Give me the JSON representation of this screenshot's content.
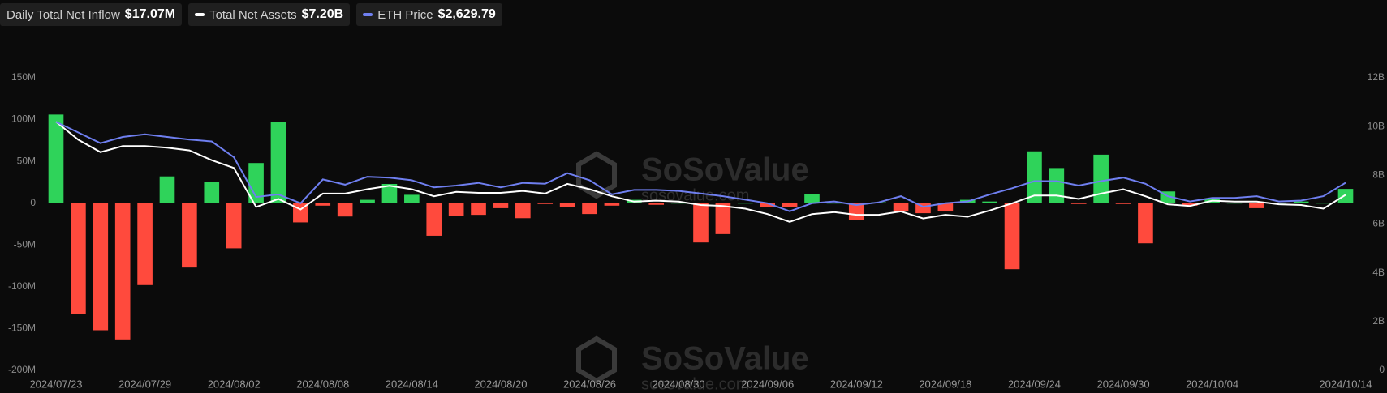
{
  "chart_data": {
    "type": "bar-line",
    "categories": [
      "2024/07/23",
      null,
      null,
      null,
      "2024/07/29",
      null,
      null,
      null,
      "2024/08/02",
      null,
      null,
      null,
      "2024/08/08",
      null,
      null,
      null,
      "2024/08/14",
      null,
      null,
      null,
      "2024/08/20",
      null,
      null,
      null,
      "2024/08/26",
      null,
      null,
      null,
      "2024/08/30",
      null,
      null,
      null,
      "2024/09/06",
      null,
      null,
      null,
      "2024/09/12",
      null,
      null,
      null,
      "2024/09/18",
      null,
      null,
      null,
      "2024/09/24",
      null,
      null,
      null,
      "2024/09/30",
      null,
      null,
      null,
      "2024/10/04",
      null,
      null,
      null,
      null,
      null,
      "2024/10/14"
    ],
    "series": [
      {
        "name": "Daily Total Net Inflow",
        "legend_label": "$17.07M",
        "kind": "bar",
        "axis": "y",
        "positive_color": "#2fd35a",
        "negative_color": "#ff4a3d",
        "values": [
          106,
          -133,
          -152,
          -163,
          -98,
          32,
          -77,
          25,
          -54,
          48,
          97,
          -23,
          -3,
          -16,
          4,
          23,
          10,
          -39,
          -15,
          -14,
          -6,
          -18,
          -1,
          -5,
          -13,
          -3,
          4,
          -2,
          0,
          -47,
          -37,
          0,
          -5,
          -5,
          11,
          0,
          -20,
          1,
          -10,
          -12,
          -10,
          4,
          2,
          -79,
          62,
          42,
          -1,
          58,
          -1,
          -48,
          14,
          -3,
          5,
          0,
          -6,
          0,
          2,
          0,
          17.07
        ]
      },
      {
        "name": "Total Net Assets",
        "legend_label": "$7.20B",
        "kind": "line",
        "axis": "y2",
        "color": "#ffffff",
        "values": [
          10.2,
          9.46,
          8.95,
          9.2,
          9.2,
          9.13,
          9.02,
          8.62,
          8.3,
          6.7,
          7.03,
          6.6,
          7.25,
          7.25,
          7.43,
          7.57,
          7.43,
          7.14,
          7.32,
          7.28,
          7.28,
          7.36,
          7.25,
          7.65,
          7.43,
          7.14,
          6.92,
          6.96,
          6.92,
          6.78,
          6.74,
          6.63,
          6.41,
          6.09,
          6.41,
          6.49,
          6.38,
          6.38,
          6.52,
          6.23,
          6.38,
          6.3,
          6.56,
          6.85,
          7.17,
          7.17,
          7.03,
          7.25,
          7.43,
          7.14,
          6.81,
          6.74,
          6.96,
          6.92,
          6.92,
          6.81,
          6.78,
          6.63,
          7.2
        ]
      },
      {
        "name": "ETH Price",
        "legend_label": "$2,629.79",
        "kind": "line",
        "axis": "y3",
        "color": "#6f7ff0",
        "values": [
          3482,
          3333,
          3184,
          3271,
          3308,
          3271,
          3234,
          3209,
          2986,
          2429,
          2466,
          2342,
          2676,
          2602,
          2713,
          2701,
          2664,
          2565,
          2590,
          2627,
          2565,
          2627,
          2614,
          2763,
          2664,
          2466,
          2528,
          2528,
          2515,
          2478,
          2441,
          2392,
          2342,
          2230,
          2342,
          2367,
          2317,
          2354,
          2441,
          2292,
          2342,
          2367,
          2466,
          2552,
          2652,
          2652,
          2590,
          2652,
          2701,
          2614,
          2441,
          2367,
          2416,
          2416,
          2441,
          2367,
          2379,
          2441,
          2629.79
        ]
      }
    ],
    "ylim": [
      -200,
      150
    ],
    "yticks": [
      {
        "value": 150,
        "label": "150M"
      },
      {
        "value": 100,
        "label": "100M"
      },
      {
        "value": 50,
        "label": "50M"
      },
      0,
      {
        "value": -50,
        "label": "-50M"
      },
      {
        "value": -100,
        "label": "-100M"
      },
      {
        "value": -150,
        "label": "-150M"
      },
      {
        "value": -200,
        "label": "-200M"
      }
    ],
    "y2lim": [
      0,
      12
    ],
    "y2ticks": [
      {
        "value": 12,
        "label": "12B"
      },
      {
        "value": 10,
        "label": "10B"
      },
      {
        "value": 8,
        "label": "8B"
      },
      {
        "value": 6,
        "label": "6B"
      },
      {
        "value": 4,
        "label": "4B"
      },
      {
        "value": 2,
        "label": "2B"
      },
      0
    ],
    "y3lim": [
      0,
      4100
    ],
    "watermark": "SoSoValue",
    "watermark_url": "sosovalue.com"
  }
}
